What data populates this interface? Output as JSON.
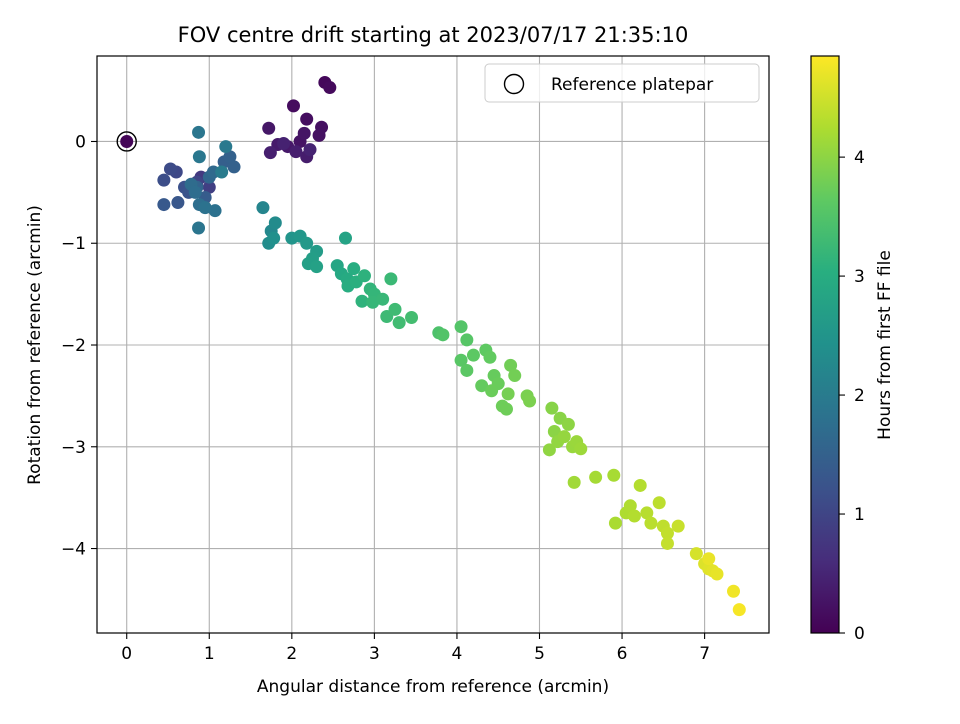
{
  "chart_data": {
    "type": "scatter",
    "title": "FOV centre drift starting at 2023/07/17 21:35:10",
    "xlabel": "Angular distance from reference (arcmin)",
    "ylabel": "Rotation from reference (arcmin)",
    "xlim": [
      -0.36,
      7.78
    ],
    "ylim": [
      -4.83,
      0.84
    ],
    "xticks": [
      0,
      1,
      2,
      3,
      4,
      5,
      6,
      7
    ],
    "yticks": [
      0,
      -1,
      -2,
      -3,
      -4
    ],
    "grid": true,
    "legend": {
      "position": "top-right",
      "entries": [
        "Reference platepar"
      ]
    },
    "reference_point": {
      "x": 0,
      "y": 0
    },
    "colorbar": {
      "label": "Hours from first FF file",
      "range": [
        0,
        4.85
      ],
      "ticks": [
        0,
        1,
        2,
        3,
        4
      ],
      "colormap": "viridis"
    },
    "points": [
      [
        0.0,
        0.0,
        0.05
      ],
      [
        2.4,
        0.58,
        0.1
      ],
      [
        2.46,
        0.53,
        0.12
      ],
      [
        2.02,
        0.35,
        0.15
      ],
      [
        2.18,
        0.22,
        0.18
      ],
      [
        2.36,
        0.14,
        0.2
      ],
      [
        2.33,
        0.06,
        0.22
      ],
      [
        2.1,
        0.0,
        0.25
      ],
      [
        2.15,
        0.08,
        0.27
      ],
      [
        1.72,
        0.13,
        0.3
      ],
      [
        1.95,
        -0.05,
        0.32
      ],
      [
        1.83,
        -0.03,
        0.35
      ],
      [
        2.18,
        -0.15,
        0.38
      ],
      [
        2.05,
        -0.1,
        0.4
      ],
      [
        1.74,
        -0.11,
        0.42
      ],
      [
        1.9,
        -0.02,
        0.45
      ],
      [
        2.22,
        -0.08,
        0.47
      ],
      [
        0.9,
        -0.35,
        0.8
      ],
      [
        1.0,
        -0.45,
        0.9
      ],
      [
        0.85,
        -0.4,
        1.0
      ],
      [
        0.6,
        -0.3,
        1.05
      ],
      [
        0.53,
        -0.27,
        1.1
      ],
      [
        0.45,
        -0.38,
        1.15
      ],
      [
        0.7,
        -0.45,
        1.2
      ],
      [
        0.75,
        -0.5,
        1.25
      ],
      [
        0.62,
        -0.6,
        1.3
      ],
      [
        0.45,
        -0.62,
        1.35
      ],
      [
        0.95,
        -0.55,
        1.4
      ],
      [
        1.18,
        -0.2,
        1.45
      ],
      [
        1.3,
        -0.25,
        1.5
      ],
      [
        1.25,
        -0.15,
        1.5
      ],
      [
        0.85,
        -0.45,
        1.55
      ],
      [
        1.0,
        -0.35,
        1.6
      ],
      [
        1.05,
        -0.3,
        1.65
      ],
      [
        0.78,
        -0.42,
        1.7
      ],
      [
        0.83,
        -0.5,
        1.72
      ],
      [
        0.88,
        -0.62,
        1.75
      ],
      [
        1.07,
        -0.68,
        1.8
      ],
      [
        0.95,
        -0.65,
        1.82
      ],
      [
        0.87,
        -0.85,
        1.88
      ],
      [
        0.87,
        0.09,
        1.9
      ],
      [
        0.88,
        -0.15,
        1.92
      ],
      [
        1.2,
        -0.05,
        1.95
      ],
      [
        1.15,
        -0.3,
        2.0
      ],
      [
        1.65,
        -0.65,
        2.2
      ],
      [
        1.75,
        -0.88,
        2.25
      ],
      [
        1.8,
        -0.8,
        2.3
      ],
      [
        1.72,
        -1.0,
        2.35
      ],
      [
        1.78,
        -0.95,
        2.4
      ],
      [
        2.0,
        -0.95,
        2.5
      ],
      [
        2.1,
        -0.93,
        2.55
      ],
      [
        2.18,
        -1.0,
        2.6
      ],
      [
        2.3,
        -1.08,
        2.65
      ],
      [
        2.25,
        -1.15,
        2.7
      ],
      [
        2.2,
        -1.2,
        2.72
      ],
      [
        2.3,
        -1.23,
        2.75
      ],
      [
        2.65,
        -0.95,
        2.8
      ],
      [
        2.55,
        -1.22,
        2.85
      ],
      [
        2.6,
        -1.3,
        2.9
      ],
      [
        2.67,
        -1.35,
        2.95
      ],
      [
        2.75,
        -1.25,
        3.0
      ],
      [
        2.68,
        -1.42,
        3.0
      ],
      [
        2.78,
        -1.38,
        3.05
      ],
      [
        2.88,
        -1.32,
        3.1
      ],
      [
        2.85,
        -1.57,
        3.12
      ],
      [
        2.95,
        -1.45,
        3.15
      ],
      [
        3.0,
        -1.5,
        3.18
      ],
      [
        2.98,
        -1.58,
        3.2
      ],
      [
        3.1,
        -1.55,
        3.22
      ],
      [
        3.2,
        -1.35,
        3.25
      ],
      [
        3.15,
        -1.72,
        3.28
      ],
      [
        3.25,
        -1.65,
        3.3
      ],
      [
        3.3,
        -1.78,
        3.32
      ],
      [
        3.45,
        -1.73,
        3.35
      ],
      [
        3.78,
        -1.88,
        3.45
      ],
      [
        3.83,
        -1.9,
        3.5
      ],
      [
        4.05,
        -1.82,
        3.52
      ],
      [
        4.12,
        -1.95,
        3.55
      ],
      [
        4.05,
        -2.15,
        3.57
      ],
      [
        4.12,
        -2.25,
        3.6
      ],
      [
        4.2,
        -2.1,
        3.62
      ],
      [
        4.35,
        -2.05,
        3.64
      ],
      [
        4.4,
        -2.12,
        3.66
      ],
      [
        4.3,
        -2.4,
        3.68
      ],
      [
        4.45,
        -2.3,
        3.7
      ],
      [
        4.5,
        -2.38,
        3.72
      ],
      [
        4.42,
        -2.45,
        3.73
      ],
      [
        4.55,
        -2.6,
        3.75
      ],
      [
        4.6,
        -2.63,
        3.76
      ],
      [
        4.65,
        -2.2,
        3.78
      ],
      [
        4.7,
        -2.3,
        3.8
      ],
      [
        4.62,
        -2.48,
        3.82
      ],
      [
        4.85,
        -2.5,
        3.85
      ],
      [
        4.88,
        -2.55,
        3.87
      ],
      [
        5.15,
        -2.62,
        3.95
      ],
      [
        5.25,
        -2.72,
        3.97
      ],
      [
        5.18,
        -2.85,
        3.98
      ],
      [
        5.35,
        -2.78,
        4.0
      ],
      [
        5.12,
        -3.03,
        4.02
      ],
      [
        5.22,
        -2.95,
        4.04
      ],
      [
        5.3,
        -2.9,
        4.06
      ],
      [
        5.4,
        -3.0,
        4.08
      ],
      [
        5.45,
        -2.95,
        4.1
      ],
      [
        5.5,
        -3.02,
        4.12
      ],
      [
        5.42,
        -3.35,
        4.15
      ],
      [
        5.68,
        -3.3,
        4.18
      ],
      [
        5.9,
        -3.28,
        4.2
      ],
      [
        5.92,
        -3.75,
        4.22
      ],
      [
        6.05,
        -3.65,
        4.25
      ],
      [
        6.1,
        -3.58,
        4.27
      ],
      [
        6.15,
        -3.68,
        4.29
      ],
      [
        6.22,
        -3.38,
        4.3
      ],
      [
        6.3,
        -3.65,
        4.32
      ],
      [
        6.35,
        -3.75,
        4.34
      ],
      [
        6.45,
        -3.55,
        4.36
      ],
      [
        6.5,
        -3.78,
        4.38
      ],
      [
        6.55,
        -3.85,
        4.4
      ],
      [
        6.55,
        -3.95,
        4.42
      ],
      [
        6.68,
        -3.78,
        4.44
      ],
      [
        6.9,
        -4.05,
        4.55
      ],
      [
        7.0,
        -4.15,
        4.6
      ],
      [
        7.05,
        -4.2,
        4.62
      ],
      [
        7.1,
        -4.22,
        4.65
      ],
      [
        7.15,
        -4.25,
        4.68
      ],
      [
        7.05,
        -4.1,
        4.7
      ],
      [
        7.35,
        -4.42,
        4.75
      ],
      [
        7.42,
        -4.6,
        4.8
      ]
    ]
  }
}
